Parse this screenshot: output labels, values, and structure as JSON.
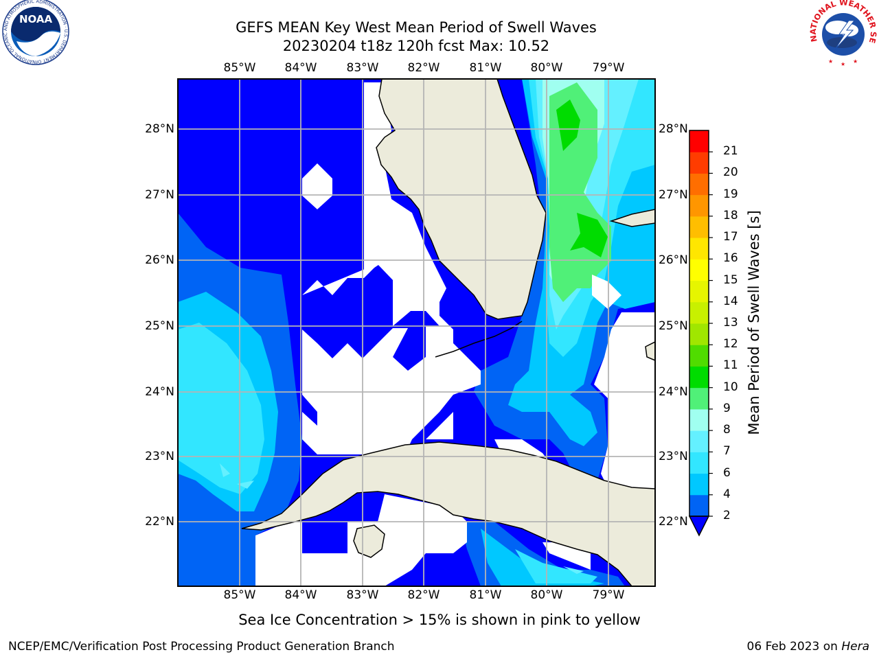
{
  "titles": {
    "line1": "GEFS MEAN Key West Mean Period of Swell Waves",
    "line2": "20230204 t18z 120h fcst   Max: 10.52"
  },
  "map": {
    "lon_labels": [
      "85°W",
      "84°W",
      "83°W",
      "82°W",
      "81°W",
      "80°W",
      "79°W"
    ],
    "lat_labels": [
      "28°N",
      "27°N",
      "26°N",
      "25°N",
      "24°N",
      "23°N",
      "22°N"
    ],
    "colors": {
      "land": "#ecebdb",
      "grid": "#b4b4b4",
      "no_data": "#ffffff"
    }
  },
  "colorbar": {
    "title": "Mean Period of Swell Waves [s]",
    "ticks": [
      "2",
      "4",
      "6",
      "7",
      "8",
      "9",
      "10",
      "11",
      "12",
      "13",
      "14",
      "15",
      "16",
      "17",
      "18",
      "19",
      "20",
      "21"
    ],
    "colors": [
      "#0064f5",
      "#00c8ff",
      "#32e6ff",
      "#64f0ff",
      "#a0fff0",
      "#50f078",
      "#00dc00",
      "#50dc00",
      "#a0e600",
      "#c8f000",
      "#e6f500",
      "#ffff00",
      "#ffe600",
      "#ffbe00",
      "#ff9600",
      "#ff6e00",
      "#ff3c00",
      "#ff0000"
    ],
    "under_color": "#0000ff"
  },
  "note": "Sea Ice Concentration > 15% is shown in pink to yellow",
  "footer": {
    "left": "NCEP/EMC/Verification Post Processing Product Generation Branch",
    "right_date": "06 Feb 2023 on ",
    "right_host": "Hera"
  },
  "logos": {
    "noaa_text": "NOAA",
    "noaa_ring": "NATIONAL OCEANIC AND ATMOSPHERIC ADMINISTRATION · U.S. DEPARTMENT OF COMMERCE",
    "nws_ring": "NATIONAL WEATHER SERVICE"
  }
}
